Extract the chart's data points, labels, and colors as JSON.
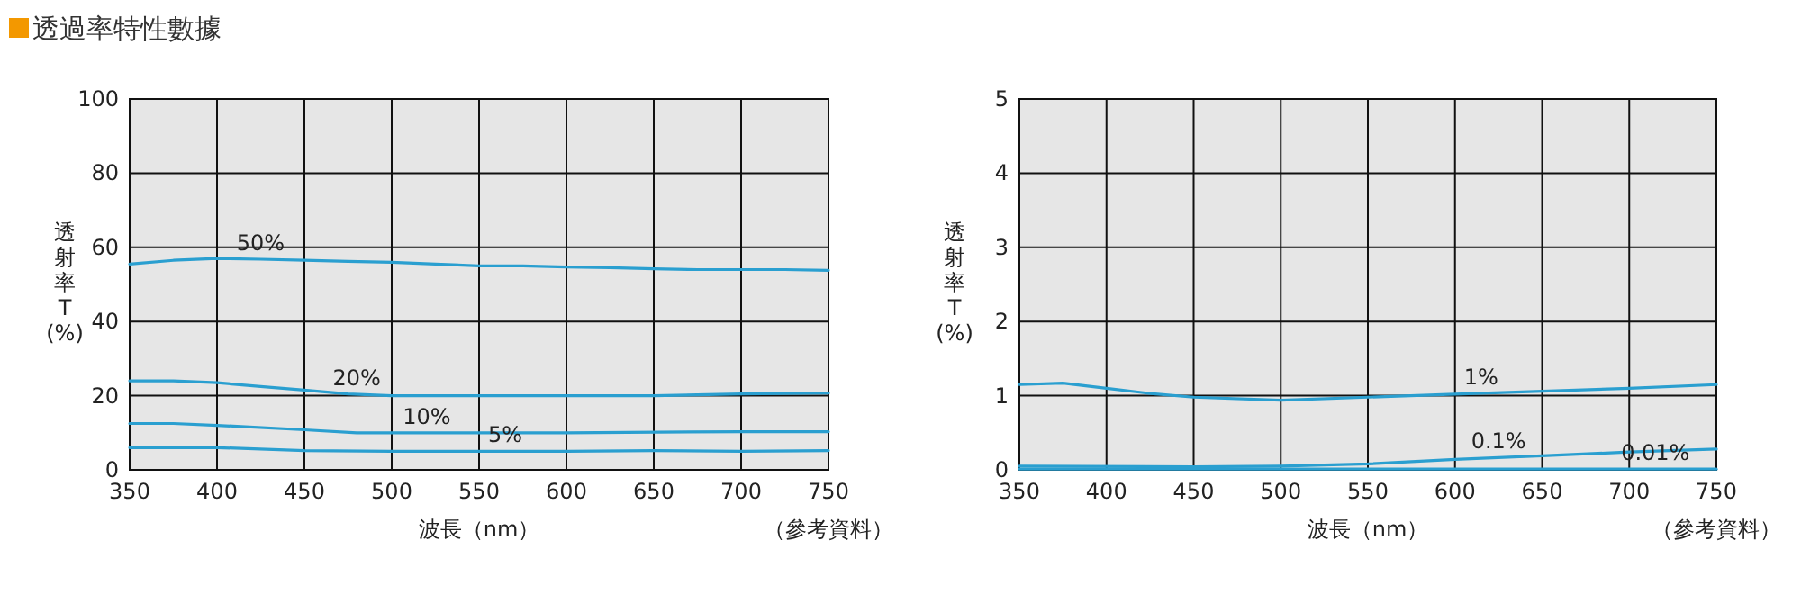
{
  "chart_data": [
    {
      "type": "line",
      "title": "透過率特性數據",
      "xlabel": "波長（nm）",
      "ylabel": "透射率T(%)",
      "xlim": [
        350,
        750
      ],
      "xticks": [
        350,
        400,
        450,
        500,
        550,
        600,
        650,
        700,
        750
      ],
      "ylim": [
        0,
        100
      ],
      "yticks": [
        0,
        20,
        40,
        60,
        80,
        100
      ],
      "grid": true,
      "marker": "none",
      "line_style": "solid",
      "series": [
        {
          "color": "#2a9fd0",
          "x": [
            350,
            375,
            400,
            425,
            450,
            475,
            500,
            525,
            550,
            575,
            600,
            625,
            650,
            675,
            700,
            725,
            750
          ],
          "values": [
            55.5,
            56.5,
            57,
            56.8,
            56.5,
            56.2,
            56,
            55.5,
            55,
            55,
            54.7,
            54.5,
            54.2,
            54,
            54,
            54,
            53.8
          ]
        },
        {
          "color": "#2a9fd0",
          "x": [
            350,
            375,
            400,
            425,
            450,
            475,
            500,
            550,
            600,
            650,
            700,
            750
          ],
          "values": [
            24,
            24,
            23.5,
            22.5,
            21.5,
            20.5,
            20,
            20,
            20,
            20,
            20.5,
            20.7
          ]
        },
        {
          "color": "#2a9fd0",
          "x": [
            350,
            375,
            400,
            450,
            480,
            500,
            600,
            700,
            750
          ],
          "values": [
            12.5,
            12.5,
            12,
            10.8,
            10,
            10,
            10,
            10.3,
            10.3
          ]
        },
        {
          "color": "#2a9fd0",
          "x": [
            350,
            400,
            450,
            500,
            600,
            650,
            700,
            750
          ],
          "values": [
            6,
            6,
            5.2,
            5,
            5,
            5.2,
            5,
            5.2
          ]
        }
      ],
      "annotations": [
        {
          "text": "50%",
          "x": 425,
          "y": 56.8
        },
        {
          "text": "20%",
          "x": 480,
          "y": 20.5
        },
        {
          "text": "10%",
          "x": 520,
          "y": 10
        },
        {
          "text": "5%",
          "x": 565,
          "y": 5
        },
        "（參考資料）"
      ]
    },
    {
      "type": "line",
      "xlabel": "波長（nm）",
      "ylabel": "透射率T(%)",
      "xlim": [
        350,
        750
      ],
      "xticks": [
        350,
        400,
        450,
        500,
        550,
        600,
        650,
        700,
        750
      ],
      "ylim": [
        0,
        5
      ],
      "yticks": [
        0,
        1,
        2,
        3,
        4,
        5
      ],
      "grid": true,
      "marker": "none",
      "line_style": "solid",
      "series": [
        {
          "color": "#2a9fd0",
          "x": [
            350,
            375,
            400,
            425,
            450,
            500,
            550,
            600,
            650,
            700,
            750
          ],
          "values": [
            1.15,
            1.17,
            1.1,
            1.03,
            0.98,
            0.94,
            0.98,
            1.02,
            1.06,
            1.1,
            1.15
          ]
        },
        {
          "color": "#2a9fd0",
          "x": [
            350,
            450,
            500,
            550,
            600,
            650,
            700,
            750
          ],
          "values": [
            0.05,
            0.04,
            0.05,
            0.08,
            0.14,
            0.19,
            0.24,
            0.28
          ]
        },
        {
          "color": "#2a9fd0",
          "x": [
            350,
            750
          ],
          "values": [
            0.01,
            0.01
          ]
        }
      ],
      "annotations": [
        {
          "text": "1%",
          "x": 615,
          "y": 1.03
        },
        {
          "text": "0.1%",
          "x": 625,
          "y": 0.17
        },
        {
          "text": "0.01%",
          "x": 715,
          "y": 0.01
        },
        "（參考資料）"
      ]
    }
  ]
}
